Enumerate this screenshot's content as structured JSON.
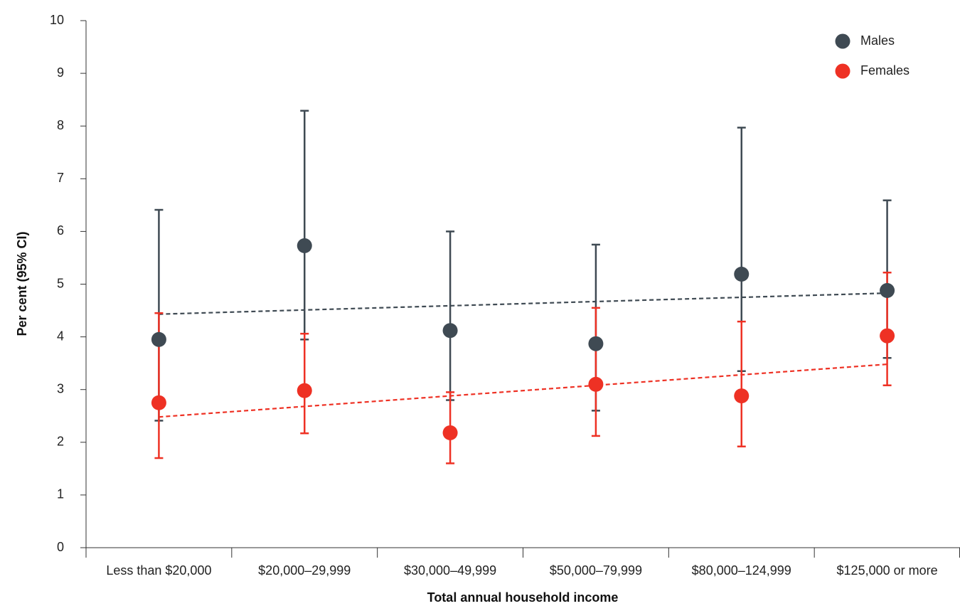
{
  "chart_data": {
    "type": "scatter",
    "title": "",
    "xlabel": "Total annual household income",
    "ylabel": "Per cent (95% CI)",
    "ylim": [
      0,
      10
    ],
    "yticks": [
      0,
      1,
      2,
      3,
      4,
      5,
      6,
      7,
      8,
      9,
      10
    ],
    "grid": false,
    "legend_position": "top-right",
    "categories": [
      "Less than $20,000",
      "$20,000–29,999",
      "$30,000–49,999",
      "$50,000–79,999",
      "$80,000–124,999",
      "$125,000 or more"
    ],
    "series": [
      {
        "name": "Males",
        "color": "#3f4a53",
        "values": [
          3.95,
          5.73,
          4.12,
          3.87,
          5.19,
          4.88
        ],
        "ci_lower": [
          2.41,
          3.95,
          2.8,
          2.6,
          3.35,
          3.6
        ],
        "ci_upper": [
          6.41,
          8.29,
          6.0,
          5.75,
          7.97,
          6.59
        ],
        "trend": [
          4.43,
          4.83
        ]
      },
      {
        "name": "Females",
        "color": "#ee3124",
        "values": [
          2.75,
          2.98,
          2.18,
          3.1,
          2.88,
          4.02
        ],
        "ci_lower": [
          1.7,
          2.17,
          1.6,
          2.12,
          1.92,
          3.08
        ],
        "ci_upper": [
          4.45,
          4.06,
          2.95,
          4.55,
          4.29,
          5.22
        ],
        "trend": [
          2.48,
          3.48
        ]
      }
    ]
  }
}
